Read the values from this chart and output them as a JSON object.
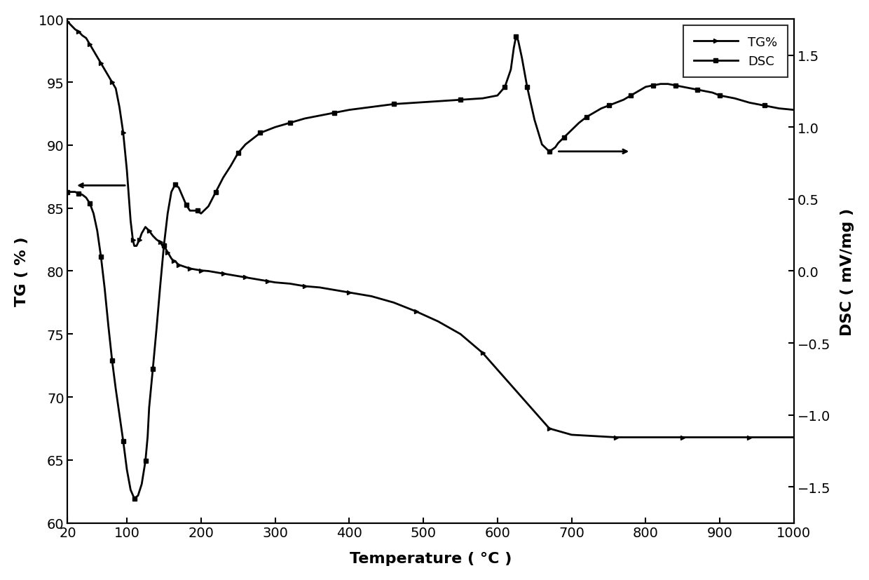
{
  "title": "",
  "xlabel": "Temperature （℃）",
  "ylabel_left": "TG（%）",
  "ylabel_right": "DSC（mV/mg）",
  "xlim": [
    20,
    1000
  ],
  "ylim_left": [
    60,
    100
  ],
  "ylim_right": [
    -1.75,
    1.75
  ],
  "xticks": [
    20,
    100,
    200,
    300,
    400,
    500,
    600,
    700,
    800,
    900,
    1000
  ],
  "yticks_left": [
    60,
    65,
    70,
    75,
    80,
    85,
    90,
    95,
    100
  ],
  "yticks_right": [
    -1.5,
    -1.0,
    -0.5,
    0.0,
    0.5,
    1.0,
    1.5
  ],
  "tg_x": [
    20,
    25,
    30,
    35,
    40,
    45,
    50,
    55,
    60,
    65,
    70,
    75,
    80,
    85,
    90,
    95,
    100,
    105,
    108,
    110,
    113,
    117,
    120,
    125,
    130,
    135,
    140,
    145,
    148,
    150,
    155,
    158,
    160,
    163,
    165,
    168,
    170,
    175,
    180,
    185,
    190,
    195,
    200,
    210,
    220,
    230,
    240,
    250,
    260,
    270,
    280,
    290,
    300,
    320,
    340,
    360,
    380,
    400,
    430,
    460,
    490,
    520,
    550,
    580,
    610,
    640,
    670,
    700,
    730,
    760,
    790,
    820,
    850,
    880,
    910,
    940,
    970,
    1000
  ],
  "tg_y": [
    99.8,
    99.5,
    99.2,
    99.0,
    98.7,
    98.5,
    98.0,
    97.5,
    97.0,
    96.5,
    96.0,
    95.5,
    95.0,
    94.5,
    93.0,
    91.0,
    88.0,
    84.0,
    82.5,
    82.0,
    82.0,
    82.5,
    83.0,
    83.5,
    83.2,
    82.8,
    82.5,
    82.3,
    82.0,
    82.0,
    81.5,
    81.2,
    81.0,
    80.8,
    80.8,
    80.6,
    80.5,
    80.4,
    80.3,
    80.2,
    80.15,
    80.1,
    80.05,
    80.0,
    79.9,
    79.8,
    79.7,
    79.6,
    79.5,
    79.4,
    79.3,
    79.2,
    79.1,
    79.0,
    78.8,
    78.7,
    78.5,
    78.3,
    78.0,
    77.5,
    76.8,
    76.0,
    75.0,
    73.5,
    71.5,
    69.5,
    67.5,
    67.0,
    66.9,
    66.8,
    66.8,
    66.8,
    66.8,
    66.8,
    66.8,
    66.8,
    66.8,
    66.8
  ],
  "dsc_x": [
    20,
    25,
    30,
    35,
    40,
    45,
    50,
    55,
    60,
    65,
    70,
    75,
    80,
    85,
    90,
    95,
    100,
    105,
    110,
    115,
    120,
    125,
    128,
    130,
    135,
    140,
    145,
    150,
    155,
    160,
    165,
    170,
    175,
    180,
    185,
    190,
    195,
    200,
    210,
    220,
    230,
    240,
    250,
    260,
    270,
    280,
    290,
    300,
    320,
    340,
    360,
    380,
    400,
    430,
    460,
    490,
    520,
    550,
    580,
    600,
    610,
    618,
    622,
    625,
    628,
    633,
    640,
    650,
    660,
    670,
    678,
    682,
    690,
    700,
    710,
    720,
    730,
    740,
    750,
    760,
    770,
    780,
    790,
    800,
    810,
    820,
    830,
    840,
    850,
    860,
    870,
    880,
    890,
    900,
    920,
    940,
    960,
    980,
    1000
  ],
  "dsc_y": [
    0.55,
    0.55,
    0.55,
    0.54,
    0.53,
    0.51,
    0.47,
    0.4,
    0.28,
    0.1,
    -0.12,
    -0.38,
    -0.62,
    -0.82,
    -1.0,
    -1.18,
    -1.38,
    -1.52,
    -1.58,
    -1.56,
    -1.48,
    -1.32,
    -1.15,
    -0.95,
    -0.68,
    -0.4,
    -0.1,
    0.18,
    0.4,
    0.55,
    0.6,
    0.58,
    0.52,
    0.46,
    0.42,
    0.42,
    0.42,
    0.4,
    0.45,
    0.55,
    0.65,
    0.73,
    0.82,
    0.88,
    0.92,
    0.96,
    0.98,
    1.0,
    1.03,
    1.06,
    1.08,
    1.1,
    1.12,
    1.14,
    1.16,
    1.17,
    1.18,
    1.19,
    1.2,
    1.22,
    1.28,
    1.4,
    1.55,
    1.63,
    1.6,
    1.48,
    1.28,
    1.05,
    0.88,
    0.83,
    0.86,
    0.89,
    0.93,
    0.98,
    1.03,
    1.07,
    1.1,
    1.13,
    1.15,
    1.17,
    1.19,
    1.22,
    1.25,
    1.28,
    1.29,
    1.3,
    1.3,
    1.29,
    1.28,
    1.27,
    1.26,
    1.25,
    1.24,
    1.22,
    1.2,
    1.17,
    1.15,
    1.13,
    1.12
  ],
  "line_color": "#000000",
  "bg_color": "#ffffff",
  "fontsize_labels": 16,
  "fontsize_ticks": 14,
  "fontsize_legend": 13,
  "ylabel_left_text": "TG ( % )",
  "ylabel_right_text": "DSC ( mV/mg )",
  "xlabel_text": "Temperature ( °C )"
}
